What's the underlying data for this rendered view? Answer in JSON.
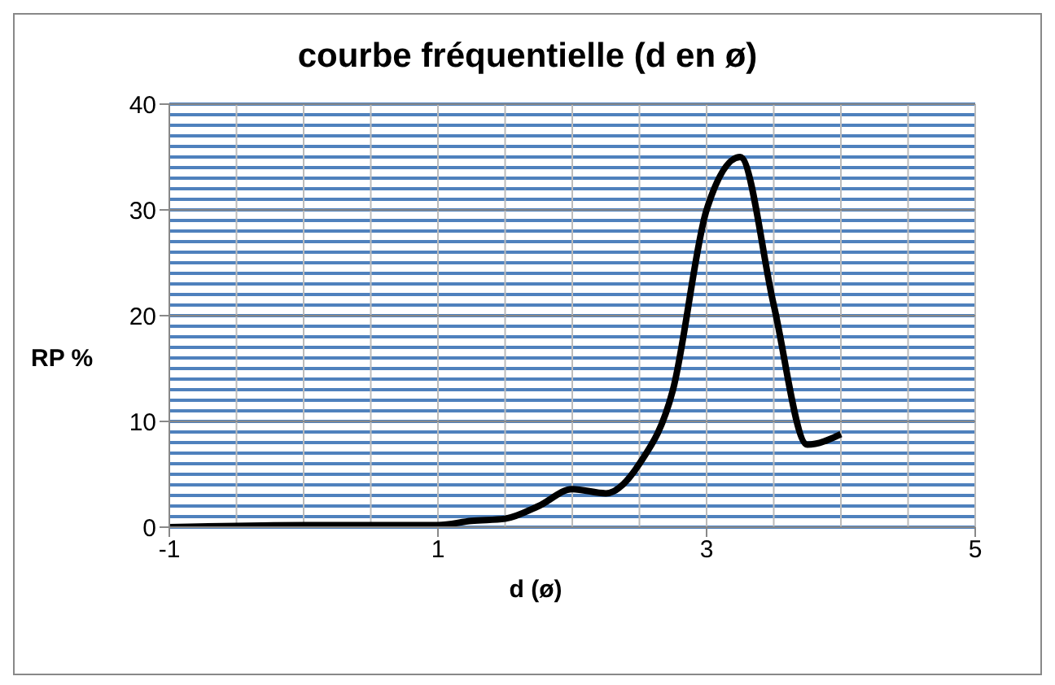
{
  "chart_data": {
    "type": "line",
    "title": "courbe fréquentielle (d en ø)",
    "xlabel": "d (ø)",
    "ylabel": "RP %",
    "x": [
      -1,
      0,
      1,
      1.25,
      1.5,
      1.75,
      2,
      2.25,
      2.5,
      2.75,
      3,
      3.25,
      3.5,
      3.75,
      4
    ],
    "series": [
      {
        "color": "#000000",
        "values": [
          0,
          0.2,
          0.2,
          0.6,
          0.8,
          2,
          3.6,
          3.2,
          6,
          13,
          30,
          35,
          21,
          7.8,
          8.8
        ]
      }
    ],
    "xlim": [
      -1,
      5
    ],
    "xticks": [
      -1,
      1,
      3,
      5
    ],
    "ylim": [
      0,
      40
    ],
    "yticks": [
      0,
      10,
      20,
      30,
      40
    ],
    "grid": true,
    "marker": "none",
    "line_style": "solid"
  }
}
